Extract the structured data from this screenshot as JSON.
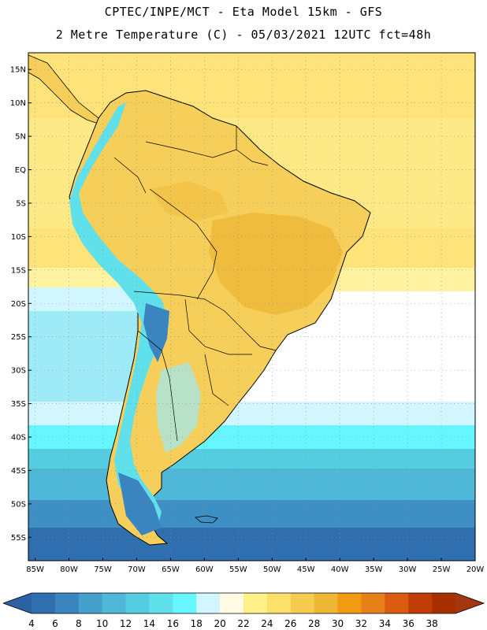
{
  "header": {
    "line1": "CPTEC/INPE/MCT -  Eta Model 15km - GFS",
    "line2": "2 Metre Temperature (C) - 05/03/2021 12UTC fct=48h"
  },
  "map": {
    "lon_range": [
      -86,
      -20
    ],
    "lat_range": [
      -58.5,
      17.5
    ],
    "lat_ticks": [
      "15N",
      "10N",
      "5N",
      "EQ",
      "5S",
      "10S",
      "15S",
      "20S",
      "25S",
      "30S",
      "35S",
      "40S",
      "45S",
      "50S",
      "55S"
    ],
    "lat_values": [
      15,
      10,
      5,
      0,
      -5,
      -10,
      -15,
      -20,
      -25,
      -30,
      -35,
      -40,
      -45,
      -50,
      -55
    ],
    "lon_ticks": [
      "85W",
      "80W",
      "75W",
      "70W",
      "65W",
      "60W",
      "55W",
      "50W",
      "45W",
      "40W",
      "35W",
      "30W",
      "25W",
      "20W"
    ],
    "lon_values": [
      -85,
      -80,
      -75,
      -70,
      -65,
      -60,
      -55,
      -50,
      -45,
      -40,
      -35,
      -30,
      -25,
      -20
    ],
    "grid": true,
    "gridline_style": "dotted"
  },
  "colorbar": {
    "labels": [
      "4",
      "6",
      "8",
      "10",
      "12",
      "14",
      "16",
      "18",
      "20",
      "22",
      "24",
      "26",
      "28",
      "30",
      "32",
      "34",
      "36",
      "38"
    ],
    "colors": [
      "#2f6fb0",
      "#3a85c0",
      "#45a0cc",
      "#4fb8d8",
      "#55cde0",
      "#5fe0ea",
      "#66f6ff",
      "#d2f6ff",
      "#fffbe2",
      "#fff08a",
      "#fde06a",
      "#f5cc50",
      "#eeb635",
      "#f19a12",
      "#e8801a",
      "#db5c10",
      "#c23c08",
      "#a83000"
    ],
    "left_arrow_color": "#2a62a4",
    "right_arrow_color": "#a3370f"
  },
  "colors": {
    "ocean_tropical": "#fde37a",
    "ocean_warm": "#fff2a0",
    "land_warm": "#f6cf5a",
    "land_hot": "#eeb535",
    "andes_cool": "#5fe0ea",
    "ocean_cold": "#3d8fc4",
    "ocean_colder": "#2f6fb0"
  }
}
